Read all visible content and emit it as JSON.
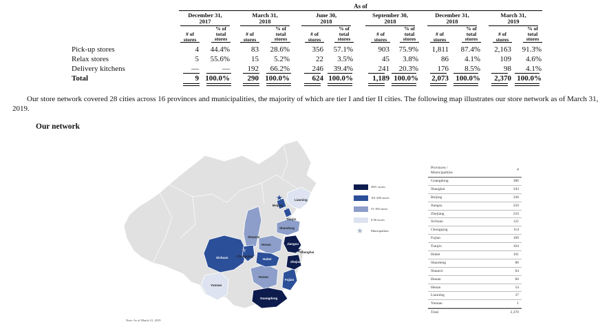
{
  "table": {
    "as_of": "As of",
    "periods": [
      {
        "l1": "December 31,",
        "l2": "2017"
      },
      {
        "l1": "March 31,",
        "l2": "2018"
      },
      {
        "l1": "June 30,",
        "l2": "2018"
      },
      {
        "l1": "September 30,",
        "l2": "2018"
      },
      {
        "l1": "December 31,",
        "l2": "2018"
      },
      {
        "l1": "March 31,",
        "l2": "2019"
      }
    ],
    "col_num": [
      "# of",
      "stores"
    ],
    "col_pct": [
      "% of",
      "total",
      "stores"
    ],
    "rows": [
      {
        "label": "Pick-up stores",
        "values": [
          "4",
          "44.4%",
          "83",
          "28.6%",
          "356",
          "57.1%",
          "903",
          "75.9%",
          "1,811",
          "87.4%",
          "2,163",
          "91.3%"
        ]
      },
      {
        "label": "Relax stores",
        "values": [
          "5",
          "55.6%",
          "15",
          "5.2%",
          "22",
          "3.5%",
          "45",
          "3.8%",
          "86",
          "4.1%",
          "109",
          "4.6%"
        ]
      },
      {
        "label": "Delivery kitchens",
        "values": [
          "—",
          "—",
          "192",
          "66.2%",
          "246",
          "39.4%",
          "241",
          "20.3%",
          "176",
          "8.5%",
          "98",
          "4.1%"
        ]
      }
    ],
    "total": {
      "label": "Total",
      "values": [
        "9",
        "100.0%",
        "290",
        "100.0%",
        "624",
        "100.0%",
        "1,189",
        "100.0%",
        "2,073",
        "100.0%",
        "2,370",
        "100.0%"
      ]
    }
  },
  "paragraph": "Our store network covered 28 cities across 16 provinces and municipalities, the majority of which are tier I and tier II cities. The following map illustrates our store network as of March 31, 2019.",
  "section_title": "Our network",
  "map": {
    "labels": {
      "beijing": "Beijing",
      "liaoning": "Liaoning",
      "tianjin": "Tianjin",
      "shandong": "Shandong",
      "shaanxi": "Shaanxi",
      "henan": "Henan",
      "jiangsu": "Jiangsu",
      "shanghai": "Shanghai",
      "sichuan": "Sichuan",
      "chongqing": "Chongqing",
      "hubei": "Hubei",
      "hunan": "Hunan",
      "zhejiang": "Zhejiang",
      "fujian": "Fujian",
      "yunnan": "Yunnan",
      "guangdong": "Guangdong"
    },
    "colors": {
      "tier1": "#0d1b4d",
      "tier2": "#2c4f99",
      "tier3": "#8c9ec9",
      "tier4": "#dde3f0",
      "base": "#e1e1e1",
      "star": "#2c4f99",
      "star_muni_legend": "#aab4cc"
    }
  },
  "legend": [
    {
      "text": "200+ stores",
      "color": "#0d1b4d"
    },
    {
      "text": "101-200 stores",
      "color": "#2c4f99"
    },
    {
      "text": "51-100 stores",
      "color": "#8c9ec9"
    },
    {
      "text": "0-50 stores",
      "color": "#dde3f0"
    },
    {
      "text": "Municipalities",
      "star": true
    }
  ],
  "province_table": {
    "header_l1": "Provinces /",
    "header_l2": "Municipalities",
    "header_r": "#",
    "rows": [
      {
        "name": "Guangdong",
        "count": "386"
      },
      {
        "name": "Shanghai",
        "count": "343"
      },
      {
        "name": "Beijing",
        "count": "336"
      },
      {
        "name": "Jiangsu",
        "count": "250"
      },
      {
        "name": "Zhejiang",
        "count": "210"
      },
      {
        "name": "Sichuan",
        "count": "121"
      },
      {
        "name": "Chongqing",
        "count": "114"
      },
      {
        "name": "Fujian",
        "count": "109"
      },
      {
        "name": "Tianjin",
        "count": "104"
      },
      {
        "name": "Hubei",
        "count": "101"
      },
      {
        "name": "Shandong",
        "count": "80"
      },
      {
        "name": "Shaanxi",
        "count": "64"
      },
      {
        "name": "Hunan",
        "count": "60"
      },
      {
        "name": "Henan",
        "count": "54"
      },
      {
        "name": "Liaoning",
        "count": "37"
      },
      {
        "name": "Yunnan",
        "count": "1"
      }
    ],
    "total_label": "Total",
    "total_value": "2,370"
  },
  "note": "Note:  As of March 31, 2019"
}
